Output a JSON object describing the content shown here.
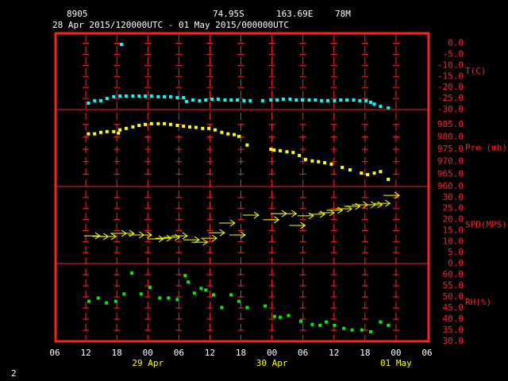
{
  "header": {
    "station": "8905",
    "lat": "74.95S",
    "lon": "163.69E",
    "elev": "78M",
    "period": "28 Apr 2015/120000UTC - 01 May 2015/000000UTC"
  },
  "footer": "2",
  "chart_data": [
    {
      "type": "scatter",
      "marker": "square",
      "ylabel": "T(C)",
      "color": "#00ffff",
      "xlim": [
        0,
        72
      ],
      "ylim": [
        -30,
        4.5
      ],
      "yticks": [
        {
          "value": 0,
          "label": "0.0"
        },
        {
          "value": -5,
          "label": "-5.0"
        },
        {
          "value": -10,
          "label": "-10.0"
        },
        {
          "value": -15,
          "label": "-15.0"
        },
        {
          "value": -20,
          "label": "-20.0"
        },
        {
          "value": -25,
          "label": "-25.0"
        },
        {
          "value": -30,
          "label": "-30.0"
        }
      ],
      "x": [
        6.5,
        7.7,
        8.9,
        10.1,
        11.4,
        12.6,
        12.9,
        13.8,
        15.1,
        16.3,
        17.5,
        18.7,
        20.0,
        21.2,
        22.4,
        23.7,
        24.9,
        25.5,
        26.7,
        28.0,
        29.2,
        30.4,
        31.6,
        32.9,
        34.1,
        35.3,
        36.6,
        37.8,
        40.2,
        41.8,
        43.0,
        44.2,
        45.5,
        46.7,
        47.9,
        49.2,
        50.4,
        51.6,
        52.8,
        54.1,
        55.3,
        56.5,
        57.8,
        59.0,
        60.2,
        61.1,
        61.8,
        63.0,
        64.5
      ],
      "values": [
        -27.1,
        -26.0,
        -26.0,
        -25.0,
        -24.2,
        -23.9,
        -0.5,
        -23.9,
        -23.9,
        -23.9,
        -23.9,
        -23.9,
        -24.2,
        -24.2,
        -24.2,
        -24.6,
        -24.6,
        -26.4,
        -25.7,
        -26.0,
        -25.7,
        -25.3,
        -25.3,
        -25.7,
        -25.7,
        -25.7,
        -26.0,
        -26.0,
        -26.0,
        -25.7,
        -25.7,
        -25.3,
        -25.3,
        -25.7,
        -25.7,
        -25.7,
        -25.7,
        -26.0,
        -26.0,
        -26.0,
        -25.7,
        -25.7,
        -25.7,
        -26.0,
        -26.0,
        -26.7,
        -27.5,
        -28.6,
        -29.3
      ]
    },
    {
      "type": "scatter",
      "marker": "square",
      "ylabel": "Pre (mb)",
      "color": "#ffff00",
      "xlim": [
        0,
        72
      ],
      "ylim": [
        960,
        991
      ],
      "yticks": [
        {
          "value": 985,
          "label": "985.0"
        },
        {
          "value": 980,
          "label": "980.0"
        },
        {
          "value": 975,
          "label": "975.0"
        },
        {
          "value": 970,
          "label": "970.0"
        },
        {
          "value": 965,
          "label": "965.0"
        },
        {
          "value": 960,
          "label": "960.0"
        }
      ],
      "x": [
        6.5,
        7.7,
        8.9,
        10.1,
        11.4,
        12.3,
        12.6,
        13.8,
        15.1,
        16.3,
        17.5,
        18.7,
        20.0,
        21.2,
        22.4,
        23.7,
        24.9,
        26.1,
        27.3,
        28.6,
        29.8,
        31.0,
        32.3,
        33.5,
        34.7,
        35.6,
        37.2,
        41.8,
        42.4,
        43.6,
        44.9,
        46.1,
        47.3,
        48.5,
        49.8,
        51.0,
        52.2,
        53.5,
        55.6,
        57.1,
        59.3,
        60.5,
        61.8,
        63.0,
        64.5
      ],
      "values": [
        981.2,
        981.2,
        981.8,
        982.1,
        982.1,
        981.5,
        982.8,
        983.4,
        984.0,
        984.6,
        985.0,
        985.3,
        985.3,
        985.3,
        985.0,
        984.6,
        984.3,
        984.0,
        983.8,
        983.4,
        983.4,
        982.8,
        981.8,
        981.2,
        980.9,
        980.2,
        976.7,
        975.0,
        974.7,
        974.4,
        974.0,
        973.7,
        972.5,
        970.9,
        970.3,
        970.0,
        969.6,
        969.0,
        967.7,
        966.7,
        965.4,
        964.8,
        965.4,
        966.0,
        962.9
      ]
    },
    {
      "type": "scatter",
      "marker": "arrow",
      "ylabel": "SPD(MPS)",
      "color": "#ffff00",
      "xlim": [
        0,
        72
      ],
      "ylim": [
        0,
        35
      ],
      "yticks": [
        {
          "value": 30,
          "label": "30.0"
        },
        {
          "value": 25,
          "label": "25.0"
        },
        {
          "value": 20,
          "label": "20.0"
        },
        {
          "value": 15,
          "label": "15.0"
        },
        {
          "value": 10,
          "label": "10.0"
        },
        {
          "value": 5,
          "label": "5.0"
        },
        {
          "value": 0,
          "label": "0.0"
        }
      ],
      "x": [
        7.2,
        8.8,
        10.3,
        12.3,
        13.8,
        15.7,
        17.2,
        19.5,
        21.0,
        22.6,
        24.1,
        26.4,
        28.0,
        29.8,
        31.3,
        33.3,
        35.3,
        37.9,
        41.8,
        43.3,
        45.2,
        46.9,
        48.5,
        50.7,
        52.5,
        54.1,
        55.9,
        57.5,
        59.0,
        60.5,
        61.8,
        63.3,
        65.1
      ],
      "values": [
        12.6,
        12.3,
        12.3,
        13.7,
        13.7,
        13.0,
        13.0,
        11.2,
        11.5,
        11.9,
        12.6,
        10.8,
        9.7,
        11.5,
        14.0,
        18.4,
        13.0,
        22.0,
        19.9,
        22.7,
        22.7,
        17.3,
        21.7,
        22.4,
        23.1,
        24.2,
        24.9,
        26.0,
        26.7,
        26.7,
        26.7,
        27.4,
        31.0
      ]
    },
    {
      "type": "scatter",
      "marker": "square",
      "ylabel": "RH(%)",
      "color": "#00ee00",
      "xlim": [
        0,
        72
      ],
      "ylim": [
        30,
        65
      ],
      "yticks": [
        {
          "value": 60,
          "label": "60.0"
        },
        {
          "value": 55,
          "label": "55.0"
        },
        {
          "value": 50,
          "label": "50.0"
        },
        {
          "value": 45,
          "label": "45.0"
        },
        {
          "value": 40,
          "label": "40.0"
        },
        {
          "value": 35,
          "label": "35.0"
        },
        {
          "value": 30,
          "label": "30.0"
        }
      ],
      "x": [
        6.6,
        8.4,
        10.0,
        11.8,
        13.4,
        14.9,
        16.7,
        18.4,
        20.3,
        22.0,
        23.7,
        25.2,
        25.8,
        27.0,
        28.3,
        29.2,
        30.7,
        32.3,
        34.1,
        35.6,
        37.2,
        40.7,
        42.5,
        43.6,
        45.2,
        47.6,
        49.8,
        51.3,
        52.5,
        54.1,
        55.9,
        57.5,
        59.4,
        61.1,
        63.0,
        64.5
      ],
      "values": [
        48.0,
        49.5,
        47.3,
        48.0,
        51.3,
        60.7,
        51.3,
        54.2,
        49.5,
        49.5,
        48.8,
        59.6,
        56.7,
        51.7,
        53.8,
        53.1,
        50.9,
        45.2,
        50.9,
        48.0,
        45.2,
        45.9,
        41.2,
        40.8,
        41.6,
        39.0,
        37.6,
        37.2,
        38.7,
        37.2,
        35.8,
        35.1,
        35.1,
        34.3,
        38.7,
        37.2
      ],
      "xticks": [
        {
          "value": 0,
          "label": "06"
        },
        {
          "value": 6,
          "label": "12"
        },
        {
          "value": 12,
          "label": "18"
        },
        {
          "value": 18,
          "label": "00"
        },
        {
          "value": 24,
          "label": "06"
        },
        {
          "value": 30,
          "label": "12"
        },
        {
          "value": 36,
          "label": "18"
        },
        {
          "value": 42,
          "label": "00"
        },
        {
          "value": 48,
          "label": "06"
        },
        {
          "value": 54,
          "label": "12"
        },
        {
          "value": 60,
          "label": "18"
        },
        {
          "value": 66,
          "label": "00"
        },
        {
          "value": 72,
          "label": "06"
        }
      ],
      "date_labels": [
        {
          "x": 18,
          "label": "29 Apr"
        },
        {
          "x": 42,
          "label": "30 Apr"
        },
        {
          "x": 66,
          "label": "01 May"
        }
      ]
    }
  ]
}
